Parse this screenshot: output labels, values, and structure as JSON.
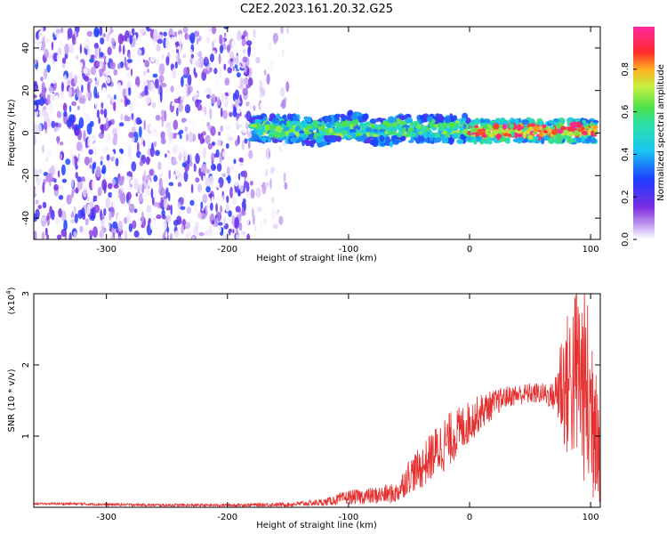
{
  "figure": {
    "title": "C2E2.2023.161.20.32.G25"
  },
  "chart_data": [
    {
      "type": "heatmap",
      "xlabel": "Height of straight line (km)",
      "ylabel": "Frequency (Hz)",
      "xlim": [
        -360,
        108
      ],
      "ylim": [
        -50,
        50
      ],
      "xticks": [
        -300,
        -200,
        -100,
        0,
        100
      ],
      "yticks": [
        -40,
        -20,
        0,
        20,
        40
      ],
      "colorbar": {
        "label": "Normalized spectral amplitude",
        "range": [
          0,
          1
        ],
        "ticks": [
          0.0,
          0.2,
          0.4,
          0.6,
          0.8
        ],
        "colormap": "rainbow (white/lavender → violet → blue → cyan → green → yellow → red → magenta)"
      },
      "features": [
        {
          "x_range": [
            -360,
            -180
          ],
          "y_range": [
            -50,
            50
          ],
          "amplitude_range": [
            0.0,
            0.3
          ],
          "description": "broadband scattered violet noise"
        },
        {
          "x_range": [
            -180,
            -150
          ],
          "y_range": [
            -50,
            50
          ],
          "amplitude_range": [
            0.0,
            0.1
          ],
          "description": "faint lavender noise"
        },
        {
          "x_range": [
            -180,
            0
          ],
          "y_center": 2,
          "y_halfwidth": 6,
          "amplitude_range": [
            0.3,
            0.7
          ],
          "description": "spectral line, blue/green/cyan"
        },
        {
          "x_range": [
            0,
            105
          ],
          "y_center": 1,
          "y_halfwidth": 5,
          "amplitude_range": [
            0.5,
            1.0
          ],
          "description": "spectral line, green to red"
        }
      ],
      "colors": {
        "violet": "#6a1fd8",
        "lavender": "#c9a8f2",
        "blue": "#1f4cff",
        "cyan": "#19e6e6",
        "green": "#4fe04a",
        "yellow": "#f0e040",
        "red": "#ff2a2a"
      }
    },
    {
      "type": "line",
      "xlabel": "Height of straight line (km)",
      "ylabel": "SNR (10 * v/v)",
      "y_multiplier": "(x10",
      "y_multiplier_exponent": "4",
      "y_multiplier_close": ")",
      "xlim": [
        -360,
        108
      ],
      "ylim": [
        0,
        3
      ],
      "xticks": [
        -300,
        -200,
        -100,
        0,
        100
      ],
      "yticks": [
        1,
        2,
        3
      ],
      "series": [
        {
          "color": "#e53030",
          "x": [
            -360,
            -330,
            -300,
            -250,
            -200,
            -150,
            -120,
            -100,
            -80,
            -60,
            -50,
            -40,
            -30,
            -20,
            -10,
            0,
            10,
            20,
            30,
            40,
            50,
            60,
            70,
            75,
            80,
            85,
            90,
            95,
            100,
            105,
            108
          ],
          "y": [
            0.05,
            0.05,
            0.04,
            0.03,
            0.03,
            0.04,
            0.07,
            0.14,
            0.16,
            0.2,
            0.45,
            0.55,
            0.75,
            0.9,
            1.05,
            1.2,
            1.35,
            1.45,
            1.55,
            1.58,
            1.6,
            1.6,
            1.55,
            1.75,
            1.7,
            1.8,
            1.9,
            1.7,
            1.3,
            1.6,
            0.2
          ],
          "envelope": [
            0.01,
            0.02,
            0.02,
            0.02,
            0.02,
            0.03,
            0.05,
            0.1,
            0.12,
            0.15,
            0.25,
            0.3,
            0.35,
            0.4,
            0.35,
            0.3,
            0.25,
            0.2,
            0.15,
            0.15,
            0.15,
            0.15,
            0.2,
            0.8,
            1.0,
            1.2,
            1.4,
            1.4,
            1.5,
            1.4,
            0.2
          ]
        }
      ]
    }
  ]
}
